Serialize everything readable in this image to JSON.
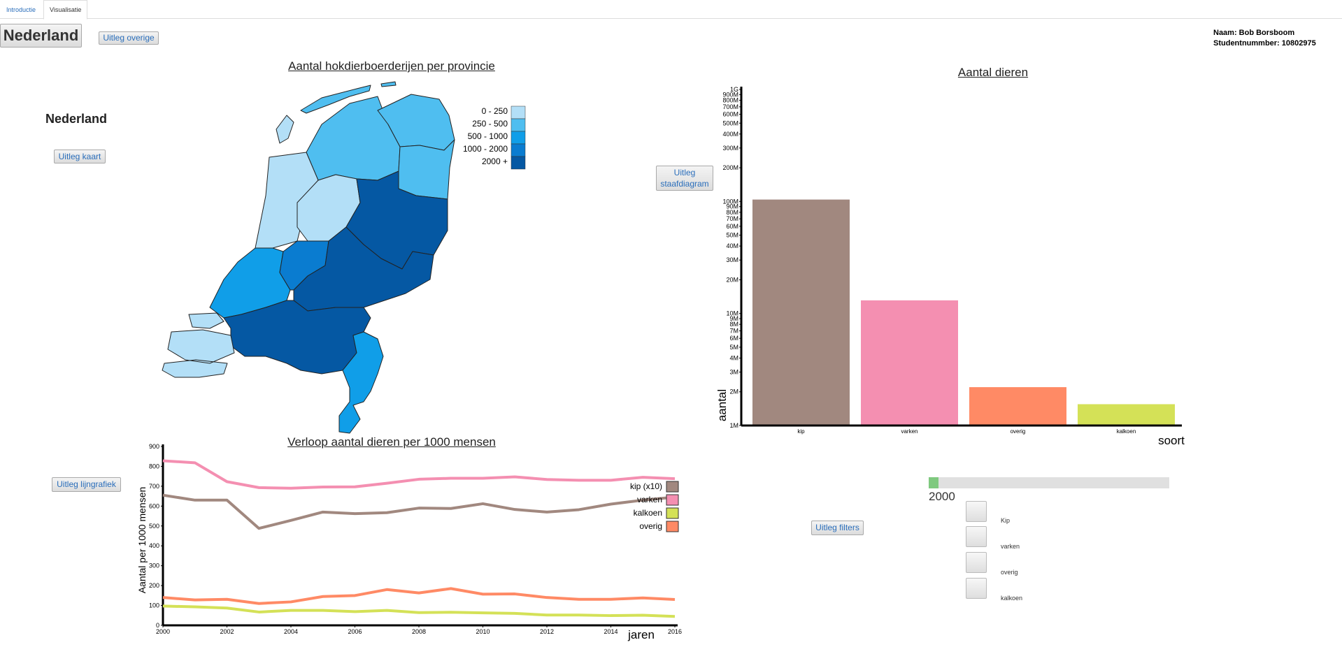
{
  "tabs": [
    {
      "label": "Introductie"
    },
    {
      "label": "Visualisatie"
    }
  ],
  "header": {
    "country_button": "Nederland",
    "explain_overall": "Uitleg overige",
    "name_line": "Naam: Bob Borsboom",
    "student_line": "Studentnummber: 10802975"
  },
  "map": {
    "title": "Aantal hokdierboerderijen per provincie",
    "selected_region": "Nederland",
    "explain_button": "Uitleg kaart",
    "legend": [
      {
        "label": "0 - 250",
        "color": "#b3dff7"
      },
      {
        "label": "250 - 500",
        "color": "#4fbef0"
      },
      {
        "label": "500 - 1000",
        "color": "#109ee8"
      },
      {
        "label": "1000 - 2000",
        "color": "#0a7cd0"
      },
      {
        "label": "2000 +",
        "color": "#0558a3"
      }
    ]
  },
  "barchart": {
    "title": "Aantal dieren",
    "explain_line1": "Uitleg",
    "explain_line2": "staafdiagram"
  },
  "linechart": {
    "title": "Verloop aantal dieren per 1000 mensen",
    "explain_button": "Uitleg lijngrafiek"
  },
  "filters": {
    "explain_button": "Uitleg filters",
    "slider_year": "2000",
    "slider_fill": 0.04,
    "options": [
      {
        "label": "Kip"
      },
      {
        "label": "varken"
      },
      {
        "label": "overig"
      },
      {
        "label": "kalkoen"
      }
    ]
  },
  "chart_data": [
    {
      "type": "bar",
      "title": "Aantal dieren",
      "xlabel": "soort",
      "ylabel": "aantal",
      "yscale": "log",
      "ylim": [
        1000000,
        1000000000
      ],
      "yticks": [
        "1M",
        "2M",
        "3M",
        "4M",
        "5M",
        "6M",
        "7M",
        "8M",
        "9M",
        "10M",
        "20M",
        "30M",
        "40M",
        "50M",
        "60M",
        "70M",
        "80M",
        "90M",
        "100M",
        "200M",
        "300M",
        "400M",
        "500M",
        "600M",
        "700M",
        "800M",
        "900M",
        "1G"
      ],
      "categories": [
        "kip",
        "varken",
        "overig",
        "kalkoen"
      ],
      "values": [
        104000000,
        13100000,
        2200000,
        1550000
      ],
      "colors": [
        "#a1887f",
        "#f48fb1",
        "#ff8a65",
        "#d4e157"
      ]
    },
    {
      "type": "line",
      "title": "Verloop aantal dieren per 1000 mensen",
      "xlabel": "jaren",
      "ylabel": "Aantal per 1000 mensen",
      "xlim": [
        2000,
        2016
      ],
      "ylim": [
        0,
        900
      ],
      "xticks": [
        2000,
        2002,
        2004,
        2006,
        2008,
        2010,
        2012,
        2014,
        2016
      ],
      "yticks": [
        0,
        100,
        200,
        300,
        400,
        500,
        600,
        700,
        800,
        900
      ],
      "x": [
        2000,
        2001,
        2002,
        2003,
        2004,
        2005,
        2006,
        2007,
        2008,
        2009,
        2010,
        2011,
        2012,
        2013,
        2014,
        2015,
        2016
      ],
      "series": [
        {
          "name": "kip (x10)",
          "color": "#a1887f",
          "values": [
            655,
            630,
            630,
            488,
            528,
            570,
            562,
            567,
            590,
            588,
            612,
            583,
            570,
            582,
            610,
            630,
            645
          ]
        },
        {
          "name": "varken",
          "color": "#f48fb1",
          "values": [
            828,
            818,
            723,
            693,
            690,
            696,
            697,
            715,
            735,
            740,
            740,
            747,
            734,
            730,
            730,
            745,
            738
          ]
        },
        {
          "name": "kalkoen",
          "color": "#d4e157",
          "values": [
            97,
            93,
            87,
            67,
            75,
            75,
            69,
            75,
            64,
            66,
            63,
            60,
            52,
            52,
            49,
            51,
            45
          ]
        },
        {
          "name": "overig",
          "color": "#ff8a65",
          "values": [
            140,
            128,
            131,
            110,
            118,
            145,
            150,
            180,
            163,
            185,
            157,
            158,
            140,
            131,
            131,
            138,
            130
          ]
        }
      ]
    }
  ]
}
